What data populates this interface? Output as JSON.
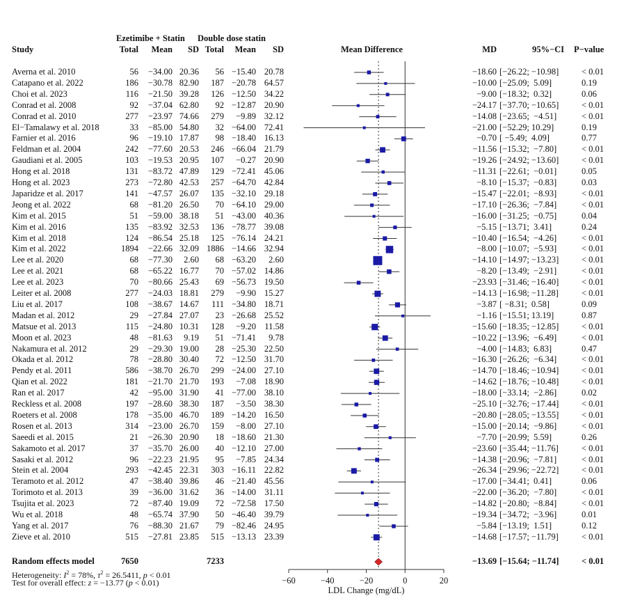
{
  "headers": {
    "group1": "Ezetimibe + Statin",
    "group2": "Double dose statin",
    "study": "Study",
    "total1": "Total",
    "mean1": "Mean",
    "sd1": "SD",
    "total2": "Total",
    "mean2": "Mean",
    "sd2": "SD",
    "plot": "Mean Difference",
    "md": "MD",
    "ci": "95%−CI",
    "p": "P−value"
  },
  "colors": {
    "box": "#1a1aa6",
    "diamond": "#d62728",
    "line": "#333333"
  },
  "rows": [
    {
      "study": "Averna et al. 2010",
      "t1": "56",
      "m1": "−34.00",
      "s1": "20.36",
      "t2": "56",
      "m2": "−15.40",
      "s2": "20.78",
      "md_text": "−18.60",
      "ci_text": "[−26.22; −10.98]",
      "p": "< 0.01",
      "md": -18.6,
      "lo": -26.22,
      "hi": -10.98
    },
    {
      "study": "Catapano et al. 2022",
      "t1": "186",
      "m1": "−30.78",
      "s1": "82.90",
      "t2": "187",
      "m2": "−20.78",
      "s2": "64.57",
      "md_text": "−10.00",
      "ci_text": "[−25.09;  5.09]",
      "p": "0.19",
      "md": -10.0,
      "lo": -25.09,
      "hi": 5.09
    },
    {
      "study": "Choi et al. 2023",
      "t1": "116",
      "m1": "−21.50",
      "s1": "39.28",
      "t2": "126",
      "m2": "−12.50",
      "s2": "34.22",
      "md_text": "−9.00",
      "ci_text": "[−18.32;  0.32]",
      "p": "0.06",
      "md": -9.0,
      "lo": -18.32,
      "hi": 0.32
    },
    {
      "study": "Conrad et al. 2008",
      "t1": "92",
      "m1": "−37.04",
      "s1": "62.80",
      "t2": "92",
      "m2": "−12.87",
      "s2": "20.90",
      "md_text": "−24.17",
      "ci_text": "[−37.70; −10.65]",
      "p": "< 0.01",
      "md": -24.17,
      "lo": -37.7,
      "hi": -10.65
    },
    {
      "study": "Conrad et al. 2010",
      "t1": "277",
      "m1": "−23.97",
      "s1": "74.66",
      "t2": "279",
      "m2": "−9.89",
      "s2": "32.12",
      "md_text": "−14.08",
      "ci_text": "[−23.65;  −4.51]",
      "p": "< 0.01",
      "md": -14.08,
      "lo": -23.65,
      "hi": -4.51
    },
    {
      "study": "El−Tamalawy et al. 2018",
      "t1": "33",
      "m1": "−85.00",
      "s1": "54.80",
      "t2": "32",
      "m2": "−64.00",
      "s2": "72.41",
      "md_text": "−21.00",
      "ci_text": "[−52.29; 10.29]",
      "p": "0.19",
      "md": -21.0,
      "lo": -52.29,
      "hi": 10.29
    },
    {
      "study": "Farnier et al. 2016",
      "t1": "96",
      "m1": "−19.10",
      "s1": "17.87",
      "t2": "98",
      "m2": "−18.40",
      "s2": "16.13",
      "md_text": "−0.70",
      "ci_text": "[ −5.49;  4.09]",
      "p": "0.77",
      "md": -0.7,
      "lo": -5.49,
      "hi": 4.09
    },
    {
      "study": "Feldman et al. 2004",
      "t1": "242",
      "m1": "−77.60",
      "s1": "20.53",
      "t2": "246",
      "m2": "−66.04",
      "s2": "21.79",
      "md_text": "−11.56",
      "ci_text": "[−15.32;  −7.80]",
      "p": "< 0.01",
      "md": -11.56,
      "lo": -15.32,
      "hi": -7.8
    },
    {
      "study": "Gaudiani et al. 2005",
      "t1": "103",
      "m1": "−19.53",
      "s1": "20.95",
      "t2": "107",
      "m2": "−0.27",
      "s2": "20.90",
      "md_text": "−19.26",
      "ci_text": "[−24.92; −13.60]",
      "p": "< 0.01",
      "md": -19.26,
      "lo": -24.92,
      "hi": -13.6
    },
    {
      "study": "Hong et al. 2018",
      "t1": "131",
      "m1": "−83.72",
      "s1": "47.89",
      "t2": "129",
      "m2": "−72.41",
      "s2": "45.06",
      "md_text": "−11.31",
      "ci_text": "[−22.61;  −0.01]",
      "p": "0.05",
      "md": -11.31,
      "lo": -22.61,
      "hi": -0.01
    },
    {
      "study": "Hong et al. 2023",
      "t1": "273",
      "m1": "−72.80",
      "s1": "42.53",
      "t2": "257",
      "m2": "−64.70",
      "s2": "42.84",
      "md_text": "−8.10",
      "ci_text": "[−15.37;  −0.83]",
      "p": "0.03",
      "md": -8.1,
      "lo": -15.37,
      "hi": -0.83
    },
    {
      "study": "Japaridze et al. 2017",
      "t1": "141",
      "m1": "−47.57",
      "s1": "26.07",
      "t2": "135",
      "m2": "−32.10",
      "s2": "29.18",
      "md_text": "−15.47",
      "ci_text": "[−22.01;  −8.93]",
      "p": "< 0.01",
      "md": -15.47,
      "lo": -22.01,
      "hi": -8.93
    },
    {
      "study": "Jeong et al. 2022",
      "t1": "68",
      "m1": "−81.20",
      "s1": "26.50",
      "t2": "70",
      "m2": "−64.10",
      "s2": "29.00",
      "md_text": "−17.10",
      "ci_text": "[−26.36;  −7.84]",
      "p": "< 0.01",
      "md": -17.1,
      "lo": -26.36,
      "hi": -7.84
    },
    {
      "study": "Kim et al. 2015",
      "t1": "51",
      "m1": "−59.00",
      "s1": "38.18",
      "t2": "51",
      "m2": "−43.00",
      "s2": "40.36",
      "md_text": "−16.00",
      "ci_text": "[−31.25;  −0.75]",
      "p": "0.04",
      "md": -16.0,
      "lo": -31.25,
      "hi": -0.75
    },
    {
      "study": "Kim et al. 2016",
      "t1": "135",
      "m1": "−83.92",
      "s1": "32.53",
      "t2": "136",
      "m2": "−78.77",
      "s2": "39.08",
      "md_text": "−5.15",
      "ci_text": "[−13.71;  3.41]",
      "p": "0.24",
      "md": -5.15,
      "lo": -13.71,
      "hi": 3.41
    },
    {
      "study": "Kim et al. 2018",
      "t1": "124",
      "m1": "−86.54",
      "s1": "25.18",
      "t2": "125",
      "m2": "−76.14",
      "s2": "24.21",
      "md_text": "−10.40",
      "ci_text": "[−16.54;  −4.26]",
      "p": "< 0.01",
      "md": -10.4,
      "lo": -16.54,
      "hi": -4.26
    },
    {
      "study": "Kim et al. 2022",
      "t1": "1894",
      "m1": "−22.66",
      "s1": "32.09",
      "t2": "1886",
      "m2": "−14.66",
      "s2": "32.94",
      "md_text": "−8.00",
      "ci_text": "[−10.07;  −5.93]",
      "p": "< 0.01",
      "md": -8.0,
      "lo": -10.07,
      "hi": -5.93
    },
    {
      "study": "Lee et al. 2020",
      "t1": "68",
      "m1": "−77.30",
      "s1": "2.60",
      "t2": "68",
      "m2": "−63.20",
      "s2": "2.60",
      "md_text": "−14.10",
      "ci_text": "[−14.97; −13.23]",
      "p": "< 0.01",
      "md": -14.1,
      "lo": -14.97,
      "hi": -13.23
    },
    {
      "study": "Lee et al. 2021",
      "t1": "68",
      "m1": "−65.22",
      "s1": "16.77",
      "t2": "70",
      "m2": "−57.02",
      "s2": "14.86",
      "md_text": "−8.20",
      "ci_text": "[−13.49;  −2.91]",
      "p": "< 0.01",
      "md": -8.2,
      "lo": -13.49,
      "hi": -2.91
    },
    {
      "study": "Lee et al. 2023",
      "t1": "70",
      "m1": "−80.66",
      "s1": "25.43",
      "t2": "69",
      "m2": "−56.73",
      "s2": "19.50",
      "md_text": "−23.93",
      "ci_text": "[−31.46; −16.40]",
      "p": "< 0.01",
      "md": -23.93,
      "lo": -31.46,
      "hi": -16.4
    },
    {
      "study": "Leiter et al. 2008",
      "t1": "277",
      "m1": "−24.03",
      "s1": "18.81",
      "t2": "279",
      "m2": "−9.90",
      "s2": "15.27",
      "md_text": "−14.13",
      "ci_text": "[−16.98; −11.28]",
      "p": "< 0.01",
      "md": -14.13,
      "lo": -16.98,
      "hi": -11.28
    },
    {
      "study": "Liu et al. 2017",
      "t1": "108",
      "m1": "−38.67",
      "s1": "14.67",
      "t2": "111",
      "m2": "−34.80",
      "s2": "18.71",
      "md_text": "−3.87",
      "ci_text": "[ −8.31;  0.58]",
      "p": "0.09",
      "md": -3.87,
      "lo": -8.31,
      "hi": 0.58
    },
    {
      "study": "Madan et al. 2012",
      "t1": "29",
      "m1": "−27.84",
      "s1": "27.07",
      "t2": "23",
      "m2": "−26.68",
      "s2": "25.52",
      "md_text": "−1.16",
      "ci_text": "[−15.51; 13.19]",
      "p": "0.87",
      "md": -1.16,
      "lo": -15.51,
      "hi": 13.19
    },
    {
      "study": "Matsue et al. 2013",
      "t1": "115",
      "m1": "−24.80",
      "s1": "10.31",
      "t2": "128",
      "m2": "−9.20",
      "s2": "11.58",
      "md_text": "−15.60",
      "ci_text": "[−18.35; −12.85]",
      "p": "< 0.01",
      "md": -15.6,
      "lo": -18.35,
      "hi": -12.85
    },
    {
      "study": "Moon et al. 2023",
      "t1": "48",
      "m1": "−81.63",
      "s1": "9.19",
      "t2": "51",
      "m2": "−71.41",
      "s2": "9.78",
      "md_text": "−10.22",
      "ci_text": "[−13.96;  −6.49]",
      "p": "< 0.01",
      "md": -10.22,
      "lo": -13.96,
      "hi": -6.49
    },
    {
      "study": "Nakamura et al. 2012",
      "t1": "29",
      "m1": "−29.30",
      "s1": "19.00",
      "t2": "28",
      "m2": "−25.30",
      "s2": "22.50",
      "md_text": "−4.00",
      "ci_text": "[−14.83;  6.83]",
      "p": "0.47",
      "md": -4.0,
      "lo": -14.83,
      "hi": 6.83
    },
    {
      "study": "Okada et al. 2012",
      "t1": "78",
      "m1": "−28.80",
      "s1": "30.40",
      "t2": "72",
      "m2": "−12.50",
      "s2": "31.70",
      "md_text": "−16.30",
      "ci_text": "[−26.26;  −6.34]",
      "p": "< 0.01",
      "md": -16.3,
      "lo": -26.26,
      "hi": -6.34
    },
    {
      "study": "Pendy et al. 2011",
      "t1": "586",
      "m1": "−38.70",
      "s1": "26.70",
      "t2": "299",
      "m2": "−24.00",
      "s2": "27.10",
      "md_text": "−14.70",
      "ci_text": "[−18.46; −10.94]",
      "p": "< 0.01",
      "md": -14.7,
      "lo": -18.46,
      "hi": -10.94
    },
    {
      "study": "Qian et al. 2022",
      "t1": "181",
      "m1": "−21.70",
      "s1": "21.70",
      "t2": "193",
      "m2": "−7.08",
      "s2": "18.90",
      "md_text": "−14.62",
      "ci_text": "[−18.76; −10.48]",
      "p": "< 0.01",
      "md": -14.62,
      "lo": -18.76,
      "hi": -10.48
    },
    {
      "study": "Ran et al. 2017",
      "t1": "42",
      "m1": "−95.00",
      "s1": "31.90",
      "t2": "41",
      "m2": "−77.00",
      "s2": "38.10",
      "md_text": "−18.00",
      "ci_text": "[−33.14;  −2.86]",
      "p": "0.02",
      "md": -18.0,
      "lo": -33.14,
      "hi": -2.86
    },
    {
      "study": "Reckless et al. 2008",
      "t1": "197",
      "m1": "−28.60",
      "s1": "38.30",
      "t2": "187",
      "m2": "−3.50",
      "s2": "38.30",
      "md_text": "−25.10",
      "ci_text": "[−32.76; −17.44]",
      "p": "< 0.01",
      "md": -25.1,
      "lo": -32.76,
      "hi": -17.44
    },
    {
      "study": "Roeters et al. 2008",
      "t1": "178",
      "m1": "−35.00",
      "s1": "46.70",
      "t2": "189",
      "m2": "−14.20",
      "s2": "16.50",
      "md_text": "−20.80",
      "ci_text": "[−28.05; −13.55]",
      "p": "< 0.01",
      "md": -20.8,
      "lo": -28.05,
      "hi": -13.55
    },
    {
      "study": "Rosen et al. 2013",
      "t1": "314",
      "m1": "−23.00",
      "s1": "26.70",
      "t2": "159",
      "m2": "−8.00",
      "s2": "27.10",
      "md_text": "−15.00",
      "ci_text": "[−20.14;  −9.86]",
      "p": "< 0.01",
      "md": -15.0,
      "lo": -20.14,
      "hi": -9.86
    },
    {
      "study": "Saeedi et al. 2015",
      "t1": "21",
      "m1": "−26.30",
      "s1": "20.90",
      "t2": "18",
      "m2": "−18.60",
      "s2": "21.30",
      "md_text": "−7.70",
      "ci_text": "[−20.99;  5.59]",
      "p": "0.26",
      "md": -7.7,
      "lo": -20.99,
      "hi": 5.59
    },
    {
      "study": "Sakamoto et al. 2017",
      "t1": "37",
      "m1": "−35.70",
      "s1": "26.00",
      "t2": "40",
      "m2": "−12.10",
      "s2": "27.00",
      "md_text": "−23.60",
      "ci_text": "[−35.44; −11.76]",
      "p": "< 0.01",
      "md": -23.6,
      "lo": -35.44,
      "hi": -11.76
    },
    {
      "study": "Sasaki et al. 2012",
      "t1": "96",
      "m1": "−22.23",
      "s1": "21.95",
      "t2": "95",
      "m2": "−7.85",
      "s2": "24.34",
      "md_text": "−14.38",
      "ci_text": "[−20.96;  −7.81]",
      "p": "< 0.01",
      "md": -14.38,
      "lo": -20.96,
      "hi": -7.81
    },
    {
      "study": "Stein et al. 2004",
      "t1": "293",
      "m1": "−42.45",
      "s1": "22.31",
      "t2": "303",
      "m2": "−16.11",
      "s2": "22.82",
      "md_text": "−26.34",
      "ci_text": "[−29.96; −22.72]",
      "p": "< 0.01",
      "md": -26.34,
      "lo": -29.96,
      "hi": -22.72
    },
    {
      "study": "Teramoto et al. 2012",
      "t1": "47",
      "m1": "−38.40",
      "s1": "39.86",
      "t2": "46",
      "m2": "−21.40",
      "s2": "45.56",
      "md_text": "−17.00",
      "ci_text": "[−34.41;  0.41]",
      "p": "0.06",
      "md": -17.0,
      "lo": -34.41,
      "hi": 0.41
    },
    {
      "study": "Torimoto et al. 2013",
      "t1": "39",
      "m1": "−36.00",
      "s1": "31.62",
      "t2": "36",
      "m2": "−14.00",
      "s2": "31.11",
      "md_text": "−22.00",
      "ci_text": "[−36.20;  −7.80]",
      "p": "< 0.01",
      "md": -22.0,
      "lo": -36.2,
      "hi": -7.8
    },
    {
      "study": "Tsujita et al. 2023",
      "t1": "72",
      "m1": "−87.40",
      "s1": "19.09",
      "t2": "72",
      "m2": "−72.58",
      "s2": "17.50",
      "md_text": "−14.82",
      "ci_text": "[−20.80;  −8.84]",
      "p": "< 0.01",
      "md": -14.82,
      "lo": -20.8,
      "hi": -8.84
    },
    {
      "study": "Wu et al. 2018",
      "t1": "48",
      "m1": "−65.74",
      "s1": "37.90",
      "t2": "50",
      "m2": "−46.40",
      "s2": "39.79",
      "md_text": "−19.34",
      "ci_text": "[−34.72;  −3.96]",
      "p": "0.01",
      "md": -19.34,
      "lo": -34.72,
      "hi": -3.96
    },
    {
      "study": "Yang et al. 2017",
      "t1": "76",
      "m1": "−88.30",
      "s1": "21.67",
      "t2": "79",
      "m2": "−82.46",
      "s2": "24.95",
      "md_text": "−5.84",
      "ci_text": "[−13.19;  1.51]",
      "p": "0.12",
      "md": -5.84,
      "lo": -13.19,
      "hi": 1.51
    },
    {
      "study": "Zieve et al. 2010",
      "t1": "515",
      "m1": "−27.81",
      "s1": "23.85",
      "t2": "515",
      "m2": "−13.13",
      "s2": "23.39",
      "md_text": "−14.68",
      "ci_text": "[−17.57; −11.79]",
      "p": "< 0.01",
      "md": -14.68,
      "lo": -17.57,
      "hi": -11.79
    }
  ],
  "overall": {
    "label": "Random effects model",
    "total1": "7650",
    "total2": "7233",
    "md_text": "−13.69",
    "ci_text": "[−15.64; −11.74]",
    "p": "< 0.01",
    "md": -13.69,
    "lo": -15.64,
    "hi": -11.74,
    "heterogeneity_label": "Heterogeneity: ",
    "heterogeneity_i2": "I",
    "heterogeneity_i2_sup": "2",
    "heterogeneity_eq1": " = 78%, ",
    "heterogeneity_tau": "τ",
    "heterogeneity_tau_sup": "2",
    "heterogeneity_eq2": " = 26.5411, ",
    "heterogeneity_p": "p",
    "heterogeneity_eq3": " < 0.01",
    "test_label": "Test for overall effect: ",
    "test_z": "z",
    "test_eq1": " = −13.77 (",
    "test_p": "p",
    "test_eq2": " < 0.01)"
  },
  "chart_data": {
    "type": "forest",
    "xlabel": "LDL Change (mg/dL)",
    "xlim": [
      -60,
      20
    ],
    "ticks": [
      -60,
      -40,
      -20,
      0,
      20
    ],
    "tick_labels": [
      "−60",
      "−40",
      "−20",
      "0",
      "20"
    ],
    "reference_line": 0,
    "summary_line": -13.69
  }
}
